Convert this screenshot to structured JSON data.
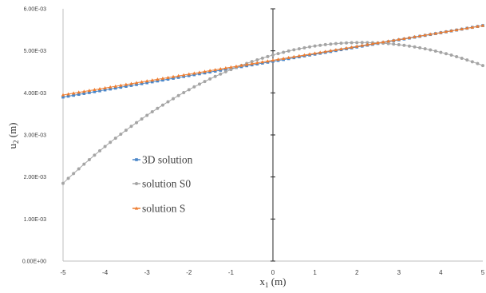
{
  "chart_data": {
    "type": "line",
    "ylabel": "u",
    "ylabel_sub": "2",
    "ylabel_unit": " (m)",
    "xlabel": "x",
    "xlabel_sub": "1",
    "xlabel_unit": " (m)",
    "xlim": [
      -5,
      5
    ],
    "ylim": [
      0,
      0.006
    ],
    "x_ticks": [
      -5,
      -4,
      -3,
      -2,
      -1,
      0,
      1,
      2,
      3,
      4,
      5
    ],
    "x_tick_labels": [
      "-5",
      "-4",
      "-3",
      "-2",
      "-1",
      "0",
      "1",
      "2",
      "3",
      "4",
      "5"
    ],
    "y_ticks": [
      0,
      0.001,
      0.002,
      0.003,
      0.004,
      0.005,
      0.006
    ],
    "y_tick_labels": [
      "0.00E+00",
      "1.00E-03",
      "2.00E-03",
      "3.00E-03",
      "4.00E-03",
      "5.00E-03",
      "6.00E-03"
    ],
    "grid": false,
    "y_axis_at_x": 0,
    "legend_position": "center-left",
    "sample_points": 81,
    "series": [
      {
        "name": "3D solution",
        "color": "#4a86c8",
        "marker": "square",
        "model": "linear",
        "value_at_x_minus5": 0.0039,
        "value_at_x0": 0.00475,
        "value_at_x5": 0.0056
      },
      {
        "name": "solution S0",
        "color": "#a5a5a5",
        "marker": "circle",
        "model": "quadratic",
        "value_at_x_minus5": 0.00185,
        "value_at_x0": 0.0049,
        "value_at_x5": 0.00465
      },
      {
        "name": "solution S",
        "color": "#ed7d31",
        "marker": "triangle",
        "model": "linear",
        "value_at_x_minus5": 0.00395,
        "value_at_x0": 0.00462,
        "value_at_x5": 0.0056
      }
    ]
  }
}
